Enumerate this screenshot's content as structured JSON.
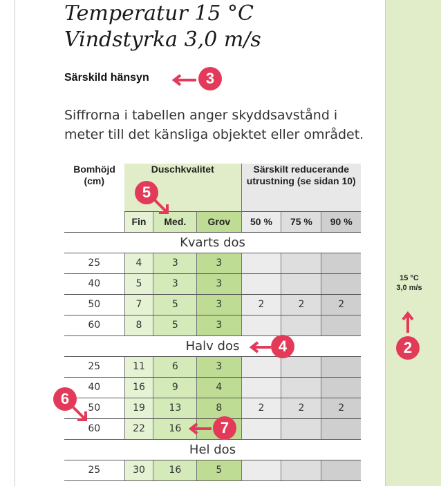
{
  "heading": {
    "line1": "Temperatur 15 °C",
    "line2": "Vindstyrka 3,0 m/s"
  },
  "subheading": "Särskild hänsyn",
  "paragraph": "Siffrorna i tabellen anger skyddsavstånd i meter till det känsliga objektet eller området.",
  "strip": {
    "line1": "15 °C",
    "line2": "3,0 m/s"
  },
  "table": {
    "header": {
      "bomhojd": "Bomhöjd (cm)",
      "duschkvalitet": "Duschkvalitet",
      "reducerande": "Särskilt reducerande utrustning (se sidan 10)",
      "fin": "Fin",
      "med": "Med.",
      "grov": "Grov",
      "p50": "50 %",
      "p75": "75 %",
      "p90": "90 %"
    },
    "sections": [
      {
        "title": "Kvarts dos",
        "rows": [
          [
            "25",
            "4",
            "3",
            "3",
            "",
            "",
            ""
          ],
          [
            "40",
            "5",
            "3",
            "3",
            "",
            "",
            ""
          ],
          [
            "50",
            "7",
            "5",
            "3",
            "2",
            "2",
            "2"
          ],
          [
            "60",
            "8",
            "5",
            "3",
            "",
            "",
            ""
          ]
        ]
      },
      {
        "title": "Halv dos",
        "rows": [
          [
            "25",
            "11",
            "6",
            "3",
            "",
            "",
            ""
          ],
          [
            "40",
            "16",
            "9",
            "4",
            "",
            "",
            ""
          ],
          [
            "50",
            "19",
            "13",
            "8",
            "2",
            "2",
            "2"
          ],
          [
            "60",
            "22",
            "16",
            "",
            "",
            "",
            ""
          ]
        ]
      },
      {
        "title": "Hel dos",
        "rows": [
          [
            "25",
            "30",
            "16",
            "5",
            "",
            "",
            ""
          ]
        ]
      }
    ]
  },
  "callouts": {
    "c2": "2",
    "c3": "3",
    "c4": "4",
    "c5": "5",
    "c6": "6",
    "c7": "7"
  },
  "colors": {
    "accent": "#e23a58",
    "strip": "#e0edc8",
    "green_light": "#e6f2d4",
    "green_mid": "#d4eab8",
    "green_dark": "#bedc94"
  }
}
